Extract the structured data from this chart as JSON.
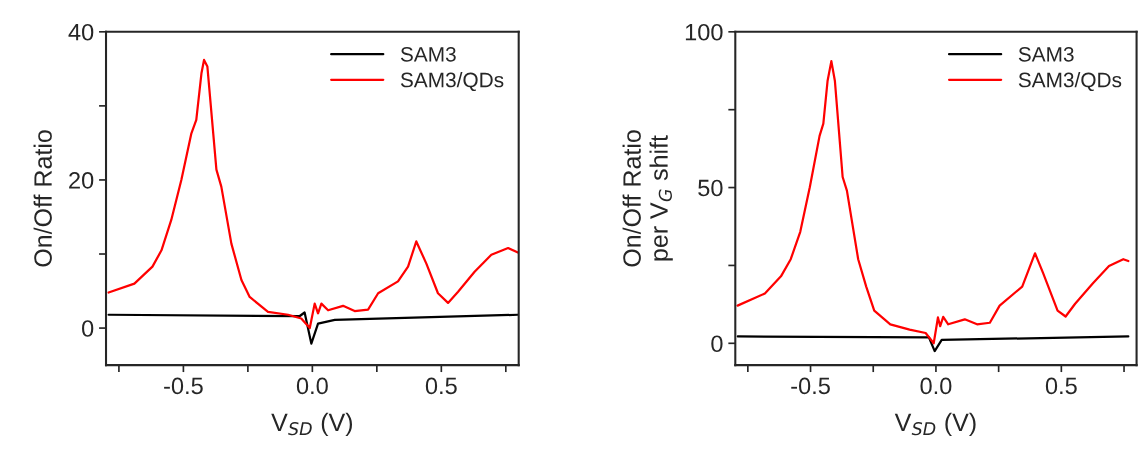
{
  "chart_data": [
    {
      "type": "line",
      "xlabel": "V$_{SD}$ (V)",
      "ylabel": "On/Off Ratio",
      "xlim": [
        -0.8,
        0.8
      ],
      "ylim": [
        -5,
        40
      ],
      "xticks": [
        {
          "value": -0.75,
          "label": null
        },
        {
          "value": -0.5,
          "label": "-0.5"
        },
        {
          "value": -0.25,
          "label": null
        },
        {
          "value": 0,
          "label": "0.0"
        },
        {
          "value": 0.25,
          "label": null
        },
        {
          "value": 0.5,
          "label": "0.5"
        },
        {
          "value": 0.75,
          "label": null
        }
      ],
      "yticks": [
        0,
        {
          "value": 10,
          "label": null
        },
        20,
        {
          "value": 30,
          "label": null
        },
        40
      ],
      "legend": "top right",
      "grid": false,
      "series": [
        {
          "name": "SAM3",
          "color": "#000000",
          "x": [
            -0.79,
            -0.05,
            -0.03,
            -0.004,
            0.022,
            0.087,
            0.797
          ],
          "values": [
            1.8,
            1.6,
            2.1,
            -2.1,
            0.6,
            1.1,
            1.8
          ]
        },
        {
          "name": "SAM3/QDs",
          "color": "#ff0000",
          "x": [
            -0.79,
            -0.69,
            -0.62,
            -0.585,
            -0.547,
            -0.508,
            -0.469,
            -0.45,
            -0.43,
            -0.42,
            -0.407,
            -0.372,
            -0.353,
            -0.314,
            -0.275,
            -0.243,
            -0.172,
            -0.094,
            -0.043,
            -0.01,
            0.0,
            0.009,
            0.022,
            0.035,
            0.061,
            0.119,
            0.164,
            0.216,
            0.255,
            0.332,
            0.371,
            0.403,
            0.442,
            0.487,
            0.526,
            0.565,
            0.629,
            0.694,
            0.759,
            0.797
          ],
          "values": [
            4.8,
            6.0,
            8.3,
            10.5,
            14.6,
            20,
            26.3,
            28.1,
            34.4,
            36.2,
            35.3,
            21.4,
            19.1,
            11.4,
            6.5,
            4.2,
            2.2,
            1.8,
            1.3,
            0.0,
            null,
            3.3,
            2.0,
            3.3,
            2.4,
            3.0,
            2.3,
            2.5,
            4.7,
            6.3,
            8.3,
            11.7,
            8.7,
            4.7,
            3.4,
            4.9,
            7.6,
            9.9,
            10.8,
            10.2
          ]
        }
      ]
    },
    {
      "type": "line",
      "xlabel": "V$_{SD}$ (V)",
      "ylabel": "On/Off Ratio\nper V$_{G}$ shift",
      "xlim": [
        -0.8,
        0.8
      ],
      "ylim": [
        -7,
        100
      ],
      "xticks": [
        {
          "value": -0.75,
          "label": null
        },
        {
          "value": -0.5,
          "label": "-0.5"
        },
        {
          "value": -0.25,
          "label": null
        },
        {
          "value": 0,
          "label": "0.0"
        },
        {
          "value": 0.25,
          "label": null
        },
        {
          "value": 0.5,
          "label": "0.5"
        },
        {
          "value": 0.75,
          "label": null
        }
      ],
      "yticks": [
        0,
        {
          "value": 25,
          "label": null
        },
        50,
        {
          "value": 75,
          "label": null
        },
        100
      ],
      "legend": "top right",
      "grid": false,
      "series": [
        {
          "name": "SAM3",
          "color": "#000000",
          "x": [
            -0.79,
            -0.028,
            -0.005,
            0.023,
            0.767
          ],
          "values": [
            2.2,
            1.9,
            -2.5,
            1.1,
            2.2
          ]
        },
        {
          "name": "SAM3/QDs",
          "color": "#ff0000",
          "x": [
            -0.791,
            -0.682,
            -0.618,
            -0.579,
            -0.541,
            -0.503,
            -0.464,
            -0.449,
            -0.432,
            -0.417,
            -0.403,
            -0.372,
            -0.355,
            -0.31,
            -0.278,
            -0.246,
            -0.182,
            -0.105,
            -0.041,
            -0.009,
            0.0,
            0.008,
            0.017,
            0.029,
            0.049,
            0.115,
            0.164,
            0.215,
            0.254,
            0.344,
            0.395,
            0.427,
            0.485,
            0.517,
            0.555,
            0.626,
            0.69,
            0.747,
            0.767
          ],
          "values": [
            12.1,
            16.0,
            21.5,
            27.0,
            35.8,
            50.1,
            66.6,
            70.5,
            84.3,
            90.6,
            84.3,
            53.4,
            49.0,
            27.0,
            18.2,
            10.5,
            6.1,
            4.4,
            3.3,
            0,
            null,
            8.3,
            5.5,
            8.5,
            6.1,
            7.7,
            6.1,
            6.6,
            12.1,
            18.2,
            28.9,
            22.6,
            10.5,
            8.6,
            12.7,
            19.3,
            24.8,
            27.0,
            26.4
          ]
        }
      ]
    }
  ]
}
